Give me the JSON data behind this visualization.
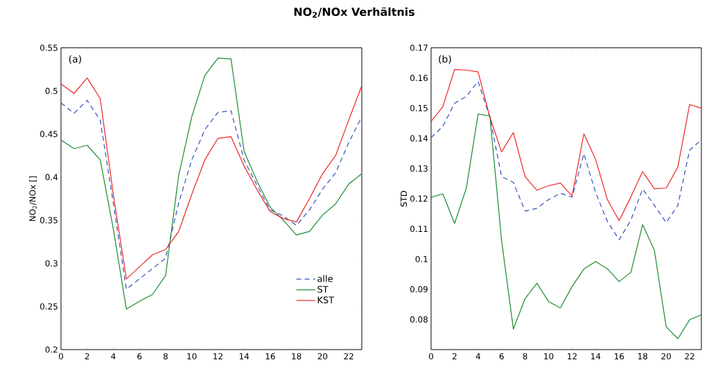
{
  "chart_data": [
    {
      "type": "line",
      "title": "NO$_{2}$/NOx Verhältnis",
      "ylabel": "NO$_{2}$/NOx []",
      "annotations": [
        "(a)"
      ],
      "x": [
        0,
        1,
        2,
        3,
        4,
        5,
        6,
        7,
        8,
        9,
        10,
        11,
        12,
        13,
        14,
        15,
        16,
        17,
        18,
        19,
        20,
        21,
        22,
        23
      ],
      "xlim": [
        0,
        23
      ],
      "xticks": [
        0,
        2,
        4,
        6,
        8,
        10,
        12,
        14,
        16,
        18,
        20,
        22
      ],
      "ylim": [
        0.2,
        0.55
      ],
      "yticks": [
        0.2,
        0.25,
        0.3,
        0.35,
        0.4,
        0.45,
        0.5,
        0.55
      ],
      "grid": false,
      "legend": "bottom right",
      "marker": "none",
      "series": [
        {
          "name": "alle",
          "color": "#2e4fb8",
          "line_style": "dashed",
          "values": [
            0.486,
            0.474,
            0.489,
            0.466,
            0.37,
            0.27,
            0.282,
            0.294,
            0.306,
            0.37,
            0.42,
            0.455,
            0.475,
            0.477,
            0.42,
            0.39,
            0.362,
            0.355,
            0.344,
            0.362,
            0.386,
            0.405,
            0.44,
            0.47
          ]
        },
        {
          "name": "ST",
          "color": "#1a8a2e",
          "line_style": "solid",
          "values": [
            0.443,
            0.433,
            0.437,
            0.42,
            0.34,
            0.247,
            0.256,
            0.264,
            0.286,
            0.402,
            0.47,
            0.518,
            0.538,
            0.537,
            0.43,
            0.395,
            0.365,
            0.35,
            0.333,
            0.337,
            0.356,
            0.369,
            0.392,
            0.404
          ]
        },
        {
          "name": "KST",
          "color": "#ee2222",
          "line_style": "solid",
          "values": [
            0.508,
            0.497,
            0.515,
            0.491,
            0.38,
            0.282,
            0.296,
            0.31,
            0.316,
            0.337,
            0.38,
            0.42,
            0.445,
            0.447,
            0.413,
            0.385,
            0.36,
            0.352,
            0.348,
            0.375,
            0.404,
            0.425,
            0.466,
            0.506
          ]
        }
      ]
    },
    {
      "type": "line",
      "ylabel": "STD",
      "annotations": [
        "(b)"
      ],
      "x": [
        0,
        1,
        2,
        3,
        4,
        5,
        6,
        7,
        8,
        9,
        10,
        11,
        12,
        13,
        14,
        15,
        16,
        17,
        18,
        19,
        20,
        21,
        22,
        23
      ],
      "xlim": [
        0,
        23
      ],
      "xticks": [
        0,
        2,
        4,
        6,
        8,
        10,
        12,
        14,
        16,
        18,
        20,
        22
      ],
      "ylim": [
        0.07,
        0.17
      ],
      "yticks": [
        0.08,
        0.09,
        0.1,
        0.11,
        0.12,
        0.13,
        0.14,
        0.15,
        0.16,
        0.17
      ],
      "grid": false,
      "legend": false,
      "marker": "none",
      "series": [
        {
          "color": "#2e4fb8",
          "line_style": "dashed",
          "values": [
            0.1402,
            0.144,
            0.1516,
            0.1539,
            0.1588,
            0.147,
            0.1273,
            0.1254,
            0.1159,
            0.1168,
            0.1197,
            0.1218,
            0.1205,
            0.1349,
            0.122,
            0.1125,
            0.1064,
            0.1129,
            0.1232,
            0.1178,
            0.1121,
            0.1178,
            0.1361,
            0.1395
          ]
        },
        {
          "color": "#1a8a2e",
          "line_style": "solid",
          "values": [
            0.1205,
            0.1216,
            0.1118,
            0.1235,
            0.148,
            0.1474,
            0.1061,
            0.0768,
            0.0869,
            0.092,
            0.0859,
            0.0838,
            0.0909,
            0.0967,
            0.0992,
            0.0968,
            0.0925,
            0.0956,
            0.1114,
            0.1029,
            0.0776,
            0.0736,
            0.0799,
            0.0815
          ]
        },
        {
          "color": "#ee2222",
          "line_style": "solid",
          "values": [
            0.1456,
            0.1505,
            0.1628,
            0.1626,
            0.162,
            0.147,
            0.1355,
            0.1419,
            0.1273,
            0.1228,
            0.1243,
            0.1252,
            0.1209,
            0.1415,
            0.133,
            0.1197,
            0.1127,
            0.1206,
            0.129,
            0.1233,
            0.1235,
            0.1305,
            0.1512,
            0.15
          ]
        }
      ]
    }
  ]
}
